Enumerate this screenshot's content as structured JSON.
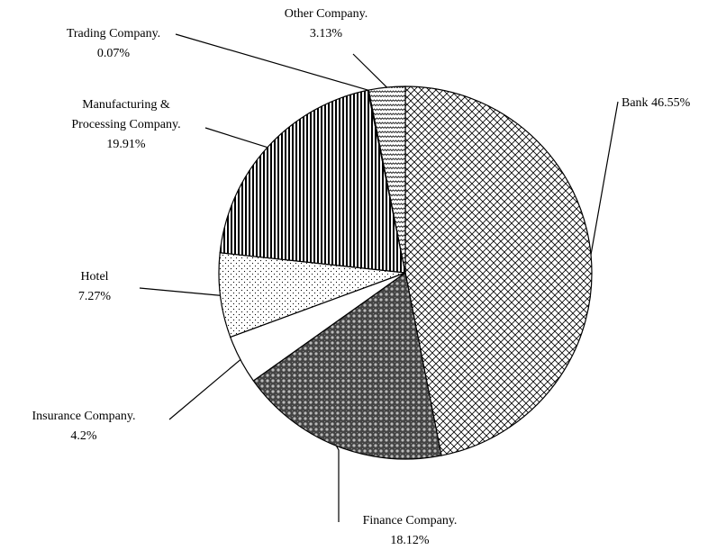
{
  "chart_data": {
    "type": "pie",
    "categories": [
      "Bank",
      "Finance Company.",
      "Insurance Company.",
      "Hotel",
      "Manufacturing & Processing Company.",
      "Trading Company.",
      "Other Company."
    ],
    "values": [
      46.55,
      18.12,
      4.2,
      7.27,
      19.91,
      0.07,
      3.13
    ],
    "value_labels": [
      "46.55%",
      "18.12%",
      "4.2%",
      "7.27%",
      "19.91%",
      "0.07%",
      "3.13%"
    ]
  }
}
